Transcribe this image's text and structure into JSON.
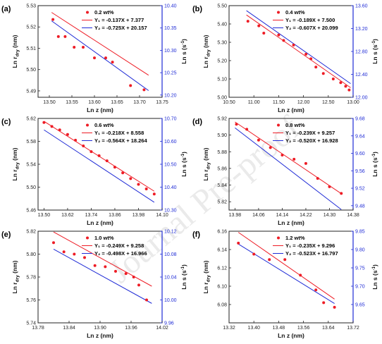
{
  "watermark": "Journal Pre-proof",
  "colors": {
    "points": "#ee1c25",
    "line1": "#ee1c25",
    "line2": "#1f2bd6",
    "frame": "#222222",
    "right_axis": "#1f2bd6"
  },
  "chart_data": [
    {
      "type": "scatter",
      "panel_label": "(a)",
      "xlabel": "Ln z (nm)",
      "ylabel_left": "Ln r",
      "ylabel_left_sub": "dry",
      "ylabel_left_unit": " (nm)",
      "ylabel_right": "Ln s (s",
      "ylabel_right_sup": "-1",
      "ylabel_right_end": ")",
      "xlim": [
        13.475,
        13.75
      ],
      "ylim_left": [
        5.487,
        5.53
      ],
      "ylim_right": [
        10.195,
        10.4
      ],
      "xticks": [
        "13.50",
        "13.55",
        "13.60",
        "13.65",
        "13.70",
        "13.75"
      ],
      "xtick_values": [
        13.5,
        13.55,
        13.6,
        13.65,
        13.7,
        13.75
      ],
      "yticks_left": [
        "5.49",
        "5.50",
        "5.51",
        "5.52",
        "5.53"
      ],
      "ytick_left_values": [
        5.49,
        5.5,
        5.51,
        5.52,
        5.53
      ],
      "yticks_right": [
        "10.20",
        "10.25",
        "10.30",
        "10.35",
        "10.40"
      ],
      "ytick_right_values": [
        10.2,
        10.25,
        10.3,
        10.35,
        10.4
      ],
      "series_name": "0.2 wt%",
      "fit1_label": "Y₁ = -0.137X + 7.377",
      "fit2_label": "Y₂ = -0.725X + 20.157",
      "points": [
        [
          13.508,
          5.5235
        ],
        [
          13.52,
          5.5155
        ],
        [
          13.535,
          5.5155
        ],
        [
          13.555,
          5.5105
        ],
        [
          13.575,
          5.5105
        ],
        [
          13.6,
          5.5055
        ],
        [
          13.625,
          5.5055
        ],
        [
          13.64,
          5.5035
        ],
        [
          13.68,
          5.4925
        ],
        [
          13.71,
          5.4905
        ]
      ],
      "fit1_range": [
        13.505,
        13.72
      ],
      "fit2_range": [
        13.505,
        13.72
      ]
    },
    {
      "type": "scatter",
      "panel_label": "(b)",
      "xlabel": "Ln z (nm)",
      "ylabel_left": "Ln r",
      "ylabel_left_sub": "dry",
      "ylabel_left_unit": " (nm)",
      "ylabel_right": "Ln s (s",
      "ylabel_right_sup": "-1",
      "ylabel_right_end": ")",
      "xlim": [
        10.5,
        13.0
      ],
      "ylim_left": [
        5.0,
        5.5
      ],
      "ylim_right": [
        12.0,
        13.6
      ],
      "xticks": [
        "10.50",
        "11.00",
        "11.50",
        "12.00",
        "12.50",
        "13.00"
      ],
      "xtick_values": [
        10.5,
        11.0,
        11.5,
        12.0,
        12.5,
        13.0
      ],
      "yticks_left": [
        "5.00",
        "5.10",
        "5.20",
        "5.30",
        "5.40",
        "5.50"
      ],
      "ytick_left_values": [
        5.0,
        5.1,
        5.2,
        5.3,
        5.4,
        5.5
      ],
      "yticks_right": [
        "12.00",
        "12.40",
        "12.80",
        "13.20",
        "13.60"
      ],
      "ytick_right_values": [
        12.0,
        12.4,
        12.8,
        13.2,
        13.6
      ],
      "series_name": "0.4 wt%",
      "fit1_label": "Y₁ = -0.189X + 7.500",
      "fit2_label": "Y₂ = -0.607X + 20.099",
      "points": [
        [
          10.88,
          5.415
        ],
        [
          11.1,
          5.39
        ],
        [
          11.2,
          5.35
        ],
        [
          11.5,
          5.34
        ],
        [
          11.6,
          5.31
        ],
        [
          11.8,
          5.285
        ],
        [
          12.05,
          5.235
        ],
        [
          12.15,
          5.21
        ],
        [
          12.25,
          5.165
        ],
        [
          12.4,
          5.13
        ],
        [
          12.6,
          5.1
        ],
        [
          12.75,
          5.08
        ],
        [
          12.85,
          5.06
        ],
        [
          12.92,
          5.04
        ]
      ],
      "fit1_range": [
        10.85,
        12.95
      ],
      "fit2_range": [
        10.85,
        12.95
      ]
    },
    {
      "type": "scatter",
      "panel_label": "(c)",
      "xlabel": "Ln z (nm)",
      "ylabel_left": "Ln r",
      "ylabel_left_sub": "dry",
      "ylabel_left_unit": " (nm)",
      "ylabel_right": "Ln s (s",
      "ylabel_right_sup": "-1",
      "ylabel_right_end": ")",
      "xlim": [
        13.47,
        14.1
      ],
      "ylim_left": [
        5.46,
        5.62
      ],
      "ylim_right": [
        10.3,
        10.7
      ],
      "xticks": [
        "13.50",
        "13.62",
        "13.74",
        "13.86",
        "13.98",
        "14.10"
      ],
      "xtick_values": [
        13.5,
        13.62,
        13.74,
        13.86,
        13.98,
        14.1
      ],
      "yticks_left": [
        "5.46",
        "5.50",
        "5.54",
        "5.58",
        "5.62"
      ],
      "ytick_left_values": [
        5.46,
        5.5,
        5.54,
        5.58,
        5.62
      ],
      "yticks_right": [
        "10.30",
        "10.40",
        "10.50",
        "10.60",
        "10.70"
      ],
      "ytick_right_values": [
        10.3,
        10.4,
        10.5,
        10.6,
        10.7
      ],
      "series_name": "0.6 wt%",
      "fit1_label": "Y₁ = -0.218X + 8.558",
      "fit2_label": "Y₂ = -0.564X + 18.264",
      "points": [
        [
          13.5,
          5.613
        ],
        [
          13.54,
          5.606
        ],
        [
          13.58,
          5.6
        ],
        [
          13.62,
          5.592
        ],
        [
          13.66,
          5.582
        ],
        [
          13.7,
          5.572
        ],
        [
          13.74,
          5.562
        ],
        [
          13.78,
          5.555
        ],
        [
          13.82,
          5.546
        ],
        [
          13.86,
          5.535
        ],
        [
          13.9,
          5.525
        ],
        [
          13.94,
          5.515
        ],
        [
          13.98,
          5.505
        ],
        [
          14.02,
          5.497
        ],
        [
          14.06,
          5.488
        ]
      ],
      "fit1_range": [
        13.5,
        14.06
      ],
      "fit2_range": [
        13.5,
        14.06
      ]
    },
    {
      "type": "scatter",
      "panel_label": "(d)",
      "xlabel": "Ln z (nm)",
      "ylabel_left": "Ln r",
      "ylabel_left_sub": "dry",
      "ylabel_left_unit": " (nm)",
      "ylabel_right": "Ln s (s",
      "ylabel_right_sup": "-1",
      "ylabel_right_end": ")",
      "xlim": [
        13.96,
        14.38
      ],
      "ylim_left": [
        5.81,
        5.92
      ],
      "ylim_right": [
        9.47,
        9.68
      ],
      "xticks": [
        "13.98",
        "14.06",
        "14.14",
        "14.22",
        "14.30",
        "14.38"
      ],
      "xtick_values": [
        13.98,
        14.06,
        14.14,
        14.22,
        14.3,
        14.38
      ],
      "yticks_left": [
        "5.82",
        "5.84",
        "5.86",
        "5.88",
        "5.90",
        "5.92"
      ],
      "ytick_left_values": [
        5.82,
        5.84,
        5.86,
        5.88,
        5.9,
        5.92
      ],
      "yticks_right": [
        "9.48",
        "9.52",
        "9.56",
        "9.60",
        "9.64",
        "9.68"
      ],
      "ytick_right_values": [
        9.48,
        9.52,
        9.56,
        9.6,
        9.64,
        9.68
      ],
      "series_name": "0.8 wt%",
      "fit1_label": "Y₁ = -0.239X + 9.257",
      "fit2_label": "Y₂ = -0.520X + 16.928",
      "points": [
        [
          13.985,
          5.913
        ],
        [
          14.02,
          5.907
        ],
        [
          14.06,
          5.894
        ],
        [
          14.1,
          5.885
        ],
        [
          14.14,
          5.876
        ],
        [
          14.18,
          5.871
        ],
        [
          14.22,
          5.866
        ],
        [
          14.26,
          5.848
        ],
        [
          14.3,
          5.838
        ],
        [
          14.34,
          5.83
        ]
      ],
      "fit1_range": [
        13.98,
        14.34
      ],
      "fit2_range": [
        13.98,
        14.34
      ]
    },
    {
      "type": "scatter",
      "panel_label": "(e)",
      "xlabel": "Ln z (nm)",
      "ylabel_left": "Ln r",
      "ylabel_left_sub": "dry",
      "ylabel_left_unit": " (nm)",
      "ylabel_right": "Ln s (s",
      "ylabel_right_sup": "-1",
      "ylabel_right_end": ")",
      "xlim": [
        13.78,
        14.02
      ],
      "ylim_left": [
        5.74,
        5.82
      ],
      "ylim_right": [
        9.96,
        10.12
      ],
      "xticks": [
        "13.78",
        "13.84",
        "13.90",
        "13.96",
        "14.02"
      ],
      "xtick_values": [
        13.78,
        13.84,
        13.9,
        13.96,
        14.02
      ],
      "yticks_left": [
        "5.74",
        "5.76",
        "5.78",
        "5.80",
        "5.82"
      ],
      "ytick_left_values": [
        5.74,
        5.76,
        5.78,
        5.8,
        5.82
      ],
      "yticks_right": [
        "9.96",
        "10.00",
        "10.04",
        "10.08",
        "10.12"
      ],
      "ytick_right_values": [
        9.96,
        10.0,
        10.04,
        10.08,
        10.12
      ],
      "series_name": "1.0 wt%",
      "fit1_label": "Y₁ = -0.249X + 9.258",
      "fit2_label": "Y₂ = -0.498X + 16.966",
      "points": [
        [
          13.81,
          5.81
        ],
        [
          13.83,
          5.802
        ],
        [
          13.85,
          5.8
        ],
        [
          13.87,
          5.797
        ],
        [
          13.89,
          5.79
        ],
        [
          13.91,
          5.789
        ],
        [
          13.93,
          5.785
        ],
        [
          13.95,
          5.783
        ],
        [
          13.965,
          5.78
        ],
        [
          13.975,
          5.773
        ],
        [
          13.99,
          5.76
        ]
      ],
      "fit1_range": [
        13.81,
        14.0
      ],
      "fit2_range": [
        13.81,
        14.0
      ]
    },
    {
      "type": "scatter",
      "panel_label": "(f)",
      "xlabel": "Ln z (nm)",
      "ylabel_left": "Ln r",
      "ylabel_left_sub": "dry",
      "ylabel_left_unit": " (nm)",
      "ylabel_right": "Ln s (s",
      "ylabel_right_sup": "-1",
      "ylabel_right_end": ")",
      "xlim": [
        13.32,
        13.72
      ],
      "ylim_left": [
        6.06,
        6.16
      ],
      "ylim_right": [
        9.6,
        9.85
      ],
      "xticks": [
        "13.32",
        "13.40",
        "13.48",
        "13.56",
        "13.64",
        "13.72"
      ],
      "xtick_values": [
        13.32,
        13.4,
        13.48,
        13.56,
        13.64,
        13.72
      ],
      "yticks_left": [
        "6.08",
        "6.10",
        "6.12",
        "6.14",
        "6.16"
      ],
      "ytick_left_values": [
        6.08,
        6.1,
        6.12,
        6.14,
        6.16
      ],
      "yticks_right": [
        "9.65",
        "9.70",
        "9.75",
        "9.80",
        "9.85"
      ],
      "ytick_right_values": [
        9.65,
        9.7,
        9.75,
        9.8,
        9.85
      ],
      "series_name": "1.2 wt%",
      "fit1_label": "Y₁ = -0.235X + 9.296",
      "fit2_label": "Y₂ = -0.523X + 16.797",
      "points": [
        [
          13.35,
          6.147
        ],
        [
          13.4,
          6.135
        ],
        [
          13.45,
          6.129
        ],
        [
          13.5,
          6.129
        ],
        [
          13.55,
          6.112
        ],
        [
          13.6,
          6.096
        ],
        [
          13.625,
          6.082
        ],
        [
          13.66,
          6.077
        ]
      ],
      "fit1_range": [
        13.35,
        13.66
      ],
      "fit2_range": [
        13.35,
        13.66
      ]
    }
  ]
}
